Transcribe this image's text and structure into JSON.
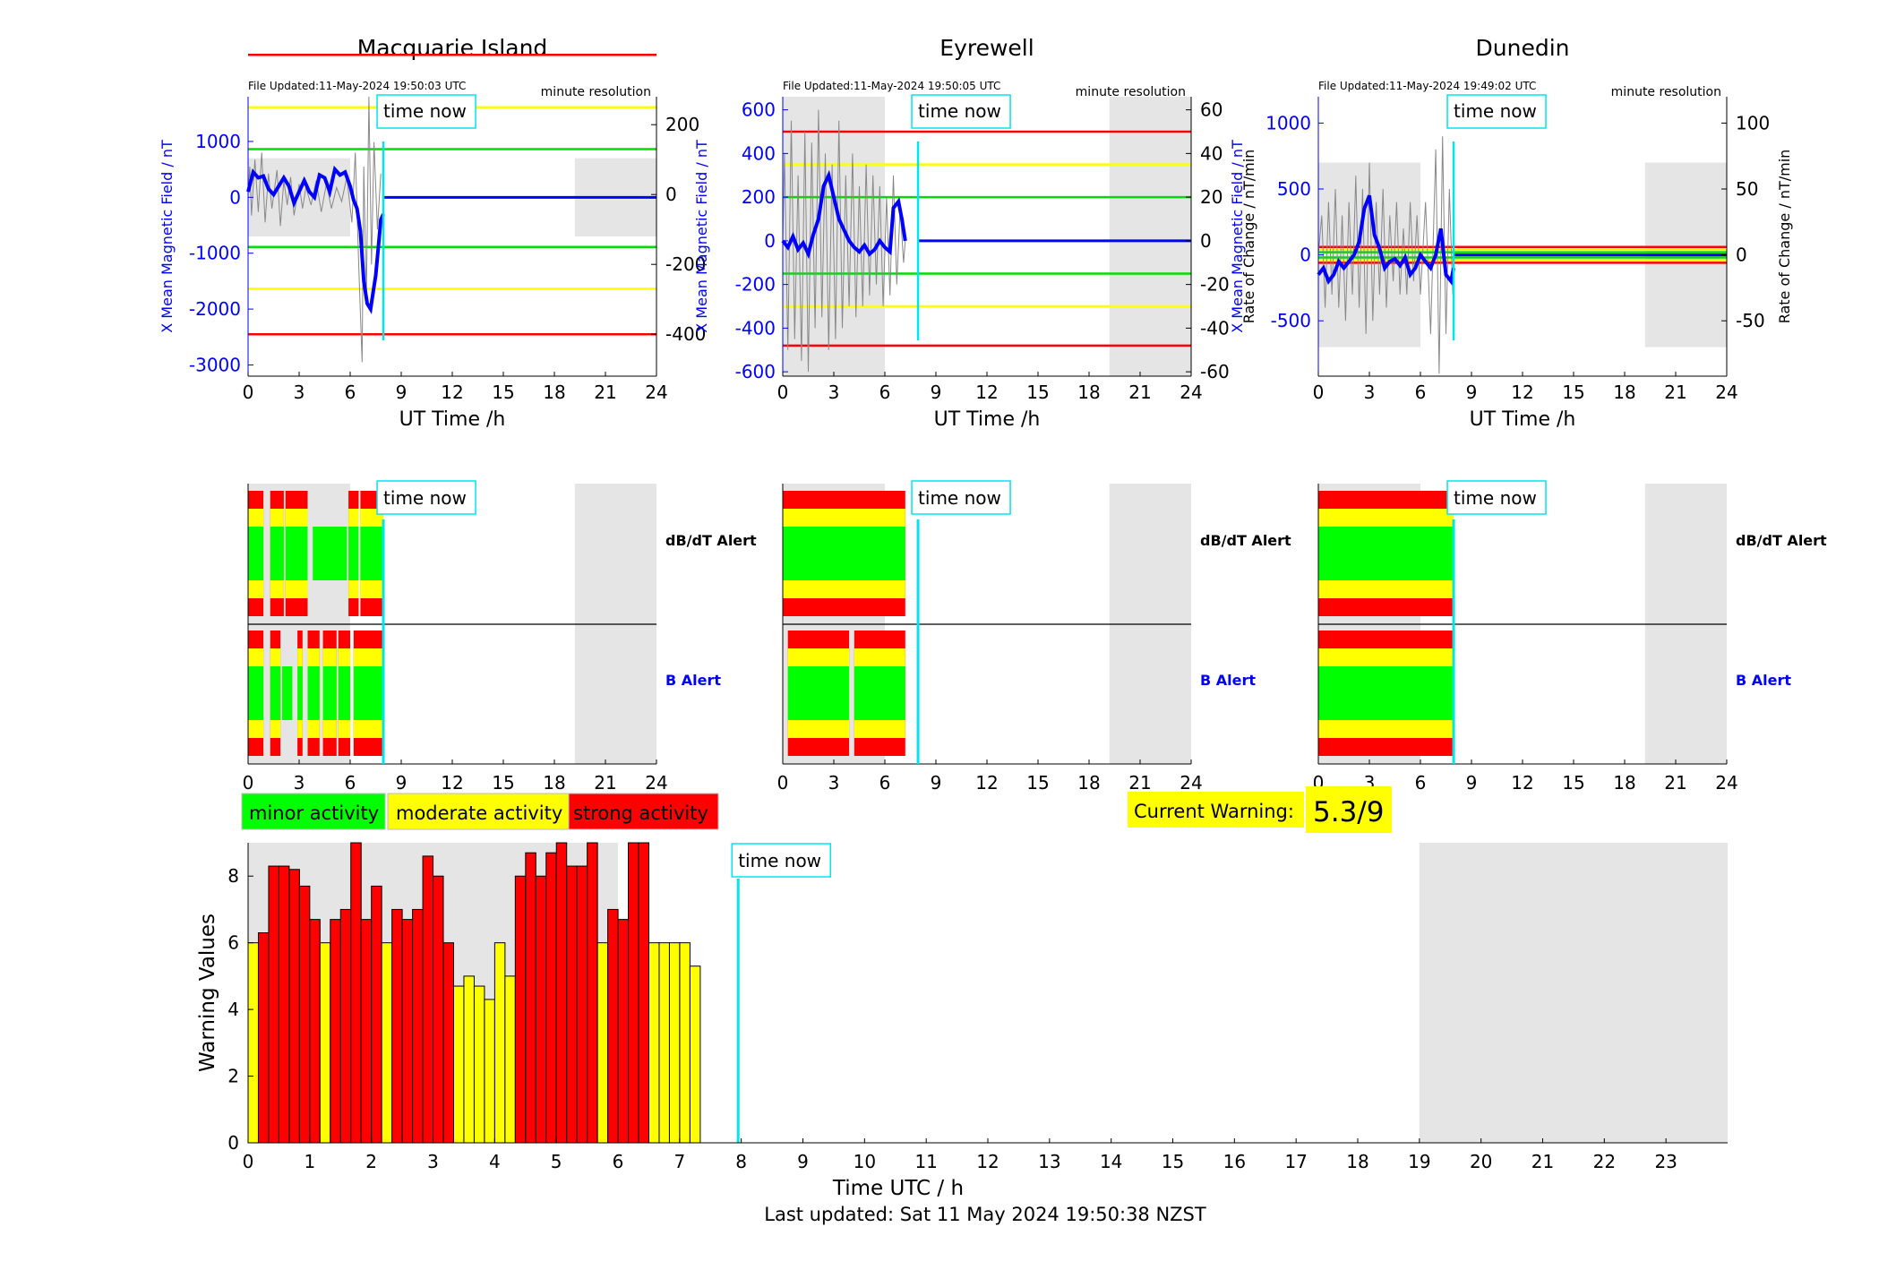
{
  "last_updated": "Last updated: Sat 11 May 2024 19:50:38 NZST",
  "time_now_label": "time now",
  "time_now_hour": 7.95,
  "stations": [
    {
      "name": "Macquarie Island",
      "file_updated": "File Updated:11-May-2024 19:50:03 UTC",
      "resolution": "minute resolution",
      "left_ylabel": "X Mean Magnetic Field / nT",
      "right_ylabel": "",
      "left_ticks": [
        1000,
        0,
        -1000,
        -2000,
        -3000
      ],
      "left_range": [
        -3200,
        1800
      ],
      "right_ticks": [
        200,
        0,
        -200,
        -400
      ],
      "right_range": [
        -520,
        280
      ],
      "threshold_lines": [
        {
          "value": 400,
          "color": "#ff0000"
        },
        {
          "value": 250,
          "color": "#ffff00"
        },
        {
          "value": 130,
          "color": "#00dd00"
        },
        {
          "value": -150,
          "color": "#00dd00"
        },
        {
          "value": -270,
          "color": "#ffff00"
        },
        {
          "value": -400,
          "color": "#ff0000"
        }
      ],
      "shade_box": [
        -700,
        700
      ],
      "mean_trace": [
        [
          0,
          100
        ],
        [
          0.3,
          450
        ],
        [
          0.6,
          350
        ],
        [
          0.9,
          380
        ],
        [
          1.2,
          150
        ],
        [
          1.5,
          50
        ],
        [
          1.8,
          200
        ],
        [
          2.1,
          350
        ],
        [
          2.4,
          200
        ],
        [
          2.7,
          -100
        ],
        [
          3,
          100
        ],
        [
          3.3,
          300
        ],
        [
          3.6,
          100
        ],
        [
          3.9,
          0
        ],
        [
          4.2,
          400
        ],
        [
          4.5,
          350
        ],
        [
          4.8,
          100
        ],
        [
          5.1,
          500
        ],
        [
          5.4,
          400
        ],
        [
          5.7,
          450
        ],
        [
          6.0,
          200
        ],
        [
          6.2,
          -50
        ],
        [
          6.4,
          -200
        ],
        [
          6.6,
          -600
        ],
        [
          6.8,
          -1500
        ],
        [
          7.0,
          -1900
        ],
        [
          7.2,
          -2000
        ],
        [
          7.35,
          -1700
        ],
        [
          7.5,
          -1400
        ],
        [
          7.65,
          -900
        ],
        [
          7.8,
          -400
        ],
        [
          7.95,
          -300
        ]
      ],
      "rate_trace": [
        [
          0,
          0
        ],
        [
          0.1,
          80
        ],
        [
          0.2,
          -60
        ],
        [
          0.4,
          100
        ],
        [
          0.6,
          -50
        ],
        [
          0.8,
          120
        ],
        [
          1.0,
          -80
        ],
        [
          1.2,
          60
        ],
        [
          1.4,
          -40
        ],
        [
          1.7,
          70
        ],
        [
          1.9,
          -90
        ],
        [
          2.1,
          40
        ],
        [
          2.3,
          -30
        ],
        [
          2.5,
          50
        ],
        [
          2.7,
          -60
        ],
        [
          3.0,
          30
        ],
        [
          3.2,
          -40
        ],
        [
          3.4,
          20
        ],
        [
          3.7,
          -30
        ],
        [
          4.0,
          40
        ],
        [
          4.3,
          -50
        ],
        [
          4.6,
          30
        ],
        [
          4.9,
          -40
        ],
        [
          5.2,
          20
        ],
        [
          5.5,
          -20
        ],
        [
          5.8,
          50
        ],
        [
          6.1,
          -80
        ],
        [
          6.3,
          120
        ],
        [
          6.5,
          -200
        ],
        [
          6.7,
          -480
        ],
        [
          6.8,
          80
        ],
        [
          6.95,
          -300
        ],
        [
          7.1,
          280
        ],
        [
          7.25,
          -200
        ],
        [
          7.4,
          150
        ],
        [
          7.6,
          -100
        ],
        [
          7.8,
          60
        ]
      ],
      "db_dt_alert": [
        [
          0,
          0.9,
          "R"
        ],
        [
          1.3,
          2.1,
          "R"
        ],
        [
          2.2,
          3.5,
          "R"
        ],
        [
          3.8,
          5.8,
          "G"
        ],
        [
          5.9,
          6.5,
          "R"
        ],
        [
          6.6,
          7.95,
          "R"
        ]
      ],
      "b_alert": [
        [
          0,
          0.9,
          "R"
        ],
        [
          1.3,
          1.9,
          "R"
        ],
        [
          2.0,
          2.6,
          "G"
        ],
        [
          2.9,
          3.2,
          "R"
        ],
        [
          3.5,
          4.2,
          "R"
        ],
        [
          4.4,
          5.2,
          "R"
        ],
        [
          5.3,
          6.0,
          "R"
        ],
        [
          6.2,
          7.95,
          "R"
        ]
      ]
    },
    {
      "name": "Eyrewell",
      "file_updated": "File Updated:11-May-2024 19:50:05 UTC",
      "resolution": "minute resolution",
      "left_ylabel": "X Mean Magnetic Field / nT",
      "right_ylabel": "Rate of Change / nT/min",
      "left_ticks": [
        600,
        400,
        200,
        0,
        -200,
        -400,
        -600
      ],
      "left_range": [
        -620,
        660
      ],
      "right_ticks": [
        60,
        40,
        20,
        0,
        -20,
        -40,
        -60
      ],
      "right_range": [
        -62,
        66
      ],
      "threshold_lines": [
        {
          "value": 50,
          "color": "#ff0000"
        },
        {
          "value": 35,
          "color": "#ffff00"
        },
        {
          "value": 20,
          "color": "#00dd00"
        },
        {
          "value": -15,
          "color": "#00dd00"
        },
        {
          "value": -30,
          "color": "#ffff00"
        },
        {
          "value": -48,
          "color": "#ff0000"
        }
      ],
      "shade_box": [
        -620,
        660
      ],
      "mean_trace": [
        [
          0,
          0
        ],
        [
          0.3,
          -30
        ],
        [
          0.6,
          20
        ],
        [
          0.9,
          -40
        ],
        [
          1.2,
          -10
        ],
        [
          1.5,
          -60
        ],
        [
          1.8,
          30
        ],
        [
          2.1,
          100
        ],
        [
          2.4,
          250
        ],
        [
          2.7,
          300
        ],
        [
          3.0,
          200
        ],
        [
          3.3,
          100
        ],
        [
          3.6,
          50
        ],
        [
          3.9,
          0
        ],
        [
          4.2,
          -30
        ],
        [
          4.5,
          -50
        ],
        [
          4.8,
          -20
        ],
        [
          5.1,
          -60
        ],
        [
          5.4,
          -40
        ],
        [
          5.7,
          0
        ],
        [
          6.0,
          -30
        ],
        [
          6.3,
          -50
        ],
        [
          6.5,
          150
        ],
        [
          6.8,
          180
        ],
        [
          7.0,
          100
        ],
        [
          7.2,
          0
        ]
      ],
      "rate_trace": [
        [
          0,
          0
        ],
        [
          0.1,
          40
        ],
        [
          0.3,
          -50
        ],
        [
          0.5,
          55
        ],
        [
          0.7,
          -45
        ],
        [
          0.9,
          30
        ],
        [
          1.1,
          -55
        ],
        [
          1.3,
          50
        ],
        [
          1.5,
          -60
        ],
        [
          1.7,
          45
        ],
        [
          1.9,
          -40
        ],
        [
          2.1,
          60
        ],
        [
          2.3,
          -35
        ],
        [
          2.5,
          40
        ],
        [
          2.7,
          -50
        ],
        [
          2.9,
          35
        ],
        [
          3.1,
          -45
        ],
        [
          3.3,
          55
        ],
        [
          3.5,
          -40
        ],
        [
          3.7,
          30
        ],
        [
          3.9,
          -30
        ],
        [
          4.1,
          40
        ],
        [
          4.3,
          -35
        ],
        [
          4.5,
          25
        ],
        [
          4.7,
          -30
        ],
        [
          4.9,
          35
        ],
        [
          5.1,
          -25
        ],
        [
          5.3,
          30
        ],
        [
          5.5,
          -20
        ],
        [
          5.7,
          25
        ],
        [
          5.9,
          -30
        ],
        [
          6.1,
          20
        ],
        [
          6.3,
          -25
        ],
        [
          6.5,
          30
        ],
        [
          6.7,
          -20
        ],
        [
          6.9,
          15
        ],
        [
          7.1,
          -10
        ],
        [
          7.2,
          0
        ]
      ],
      "db_dt_alert": [
        [
          0,
          7.2,
          "R"
        ]
      ],
      "b_alert": [
        [
          0.3,
          3.9,
          "R"
        ],
        [
          4.2,
          7.2,
          "R"
        ]
      ]
    },
    {
      "name": "Dunedin",
      "file_updated": "File Updated:11-May-2024 19:49:02 UTC",
      "resolution": "minute resolution",
      "left_ylabel": "X Mean Magnetic Field / nT",
      "right_ylabel": "Rate of Change / nT/min",
      "left_ticks": [
        1000,
        500,
        0,
        -500
      ],
      "left_range": [
        -920,
        1200
      ],
      "right_ticks": [
        100,
        50,
        0,
        -50
      ],
      "right_range": [
        -92,
        120
      ],
      "threshold_lines": [
        {
          "value": 6,
          "color": "#ff0000"
        },
        {
          "value": 4,
          "color": "#ffff00"
        },
        {
          "value": 2,
          "color": "#00dd00"
        },
        {
          "value": -2,
          "color": "#00dd00"
        },
        {
          "value": -4,
          "color": "#ffff00"
        },
        {
          "value": -6,
          "color": "#ff0000"
        }
      ],
      "shade_box": [
        -700,
        700
      ],
      "mean_trace": [
        [
          0,
          -150
        ],
        [
          0.3,
          -100
        ],
        [
          0.6,
          -200
        ],
        [
          0.9,
          -150
        ],
        [
          1.2,
          -50
        ],
        [
          1.5,
          -100
        ],
        [
          1.8,
          -50
        ],
        [
          2.1,
          0
        ],
        [
          2.4,
          100
        ],
        [
          2.7,
          350
        ],
        [
          3.0,
          450
        ],
        [
          3.3,
          150
        ],
        [
          3.6,
          50
        ],
        [
          3.9,
          -100
        ],
        [
          4.2,
          -50
        ],
        [
          4.5,
          -30
        ],
        [
          4.8,
          -80
        ],
        [
          5.1,
          -20
        ],
        [
          5.4,
          -150
        ],
        [
          5.7,
          -100
        ],
        [
          6.0,
          0
        ],
        [
          6.3,
          -50
        ],
        [
          6.6,
          -100
        ],
        [
          6.9,
          0
        ],
        [
          7.2,
          200
        ],
        [
          7.5,
          -150
        ],
        [
          7.8,
          -200
        ],
        [
          7.95,
          -100
        ]
      ],
      "rate_trace": [
        [
          0,
          0
        ],
        [
          0.2,
          30
        ],
        [
          0.4,
          -40
        ],
        [
          0.6,
          40
        ],
        [
          0.8,
          -30
        ],
        [
          1.0,
          50
        ],
        [
          1.2,
          -40
        ],
        [
          1.4,
          30
        ],
        [
          1.6,
          -50
        ],
        [
          1.8,
          40
        ],
        [
          2.0,
          -30
        ],
        [
          2.2,
          60
        ],
        [
          2.4,
          -40
        ],
        [
          2.6,
          50
        ],
        [
          2.8,
          -60
        ],
        [
          3.0,
          70
        ],
        [
          3.2,
          -50
        ],
        [
          3.4,
          40
        ],
        [
          3.6,
          -30
        ],
        [
          3.8,
          50
        ],
        [
          4.0,
          -40
        ],
        [
          4.2,
          30
        ],
        [
          4.4,
          -20
        ],
        [
          4.6,
          40
        ],
        [
          4.8,
          -30
        ],
        [
          5.0,
          20
        ],
        [
          5.2,
          -30
        ],
        [
          5.4,
          40
        ],
        [
          5.6,
          -20
        ],
        [
          5.8,
          30
        ],
        [
          6.0,
          -30
        ],
        [
          6.3,
          40
        ],
        [
          6.6,
          -60
        ],
        [
          6.9,
          80
        ],
        [
          7.1,
          -90
        ],
        [
          7.3,
          90
        ],
        [
          7.5,
          -60
        ],
        [
          7.7,
          50
        ],
        [
          7.9,
          -30
        ]
      ],
      "db_dt_alert": [
        [
          0,
          7.95,
          "R"
        ]
      ],
      "b_alert": [
        [
          0,
          7.95,
          "R"
        ]
      ]
    }
  ],
  "axis_time_label": "UT Time /h",
  "x_ticks_top": [
    0,
    3,
    6,
    9,
    12,
    15,
    18,
    21,
    24
  ],
  "alert_labels": {
    "db_dt": "dB/dT Alert",
    "b": "B Alert"
  },
  "legend": {
    "minor": {
      "label": "minor activity",
      "color": "#00ff00"
    },
    "moderate": {
      "label": "moderate activity",
      "color": "#ffff00"
    },
    "strong": {
      "label": "strong activity",
      "color": "#ff0000"
    }
  },
  "current_warning": {
    "label": "Current Warning:",
    "value": "5.3/9"
  },
  "colors": {
    "shade": "#e5e5e5",
    "time_now": "#00e5ee",
    "mean_trace": "#0000ff",
    "rate_trace": "#888888"
  },
  "chart_data": {
    "type": "bar",
    "title": "",
    "xlabel": "Time UTC / h",
    "ylabel": "Warning Values",
    "ylim": [
      0,
      9
    ],
    "xlim": [
      0,
      24
    ],
    "y_ticks": [
      0,
      2,
      4,
      6,
      8
    ],
    "x_ticks": [
      0,
      1,
      2,
      3,
      4,
      5,
      6,
      7,
      8,
      9,
      10,
      11,
      12,
      13,
      14,
      15,
      16,
      17,
      18,
      19,
      20,
      21,
      22,
      23
    ],
    "bar_width_hours": 0.1667,
    "series": [
      {
        "values": [
          6.0,
          6.3,
          8.3,
          8.3,
          8.2,
          7.7,
          6.7,
          6.0,
          6.7,
          7.0,
          9.0,
          6.7,
          7.7,
          6.0,
          7.0,
          6.7,
          7.0,
          8.6,
          8.0,
          6.0,
          4.7,
          5.0,
          4.7,
          4.3,
          6.0,
          5.0,
          8.0,
          8.7,
          8.0,
          8.7,
          9.0,
          8.3,
          8.3,
          9.0,
          6.0,
          7.0,
          6.7,
          9.0,
          9.0,
          6.0,
          6.0,
          6.0,
          6.0,
          5.3
        ],
        "colors": [
          "Y",
          "R",
          "R",
          "R",
          "R",
          "R",
          "R",
          "Y",
          "R",
          "R",
          "R",
          "R",
          "R",
          "Y",
          "R",
          "R",
          "R",
          "R",
          "R",
          "R",
          "Y",
          "Y",
          "Y",
          "Y",
          "Y",
          "Y",
          "R",
          "R",
          "R",
          "R",
          "R",
          "R",
          "R",
          "R",
          "Y",
          "R",
          "R",
          "R",
          "R",
          "Y",
          "Y",
          "Y",
          "Y",
          "Y"
        ]
      }
    ]
  }
}
